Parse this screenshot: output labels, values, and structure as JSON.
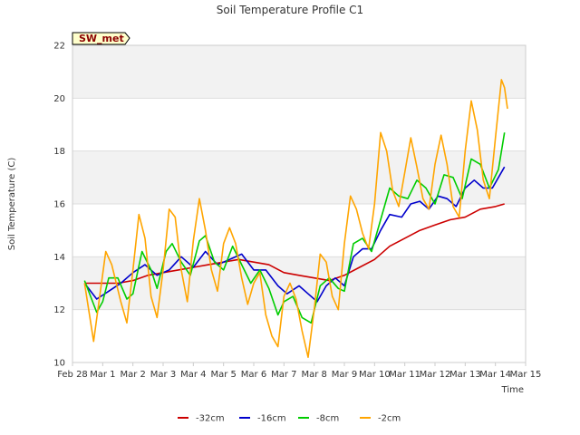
{
  "chart_data": {
    "type": "line",
    "title": "Soil Temperature Profile C1",
    "xlabel": "Time",
    "ylabel": "Soil Temperature (C)",
    "badge": "SW_met",
    "ylim": [
      10,
      22
    ],
    "yticks": [
      10,
      12,
      14,
      16,
      18,
      20,
      22
    ],
    "xlim": [
      0,
      15
    ],
    "xticks": [
      {
        "v": 0,
        "label": "Feb 28"
      },
      {
        "v": 1,
        "label": "Mar 1"
      },
      {
        "v": 2,
        "label": "Mar 2"
      },
      {
        "v": 3,
        "label": "Mar 3"
      },
      {
        "v": 4,
        "label": "Mar 4"
      },
      {
        "v": 5,
        "label": "Mar 5"
      },
      {
        "v": 6,
        "label": "Mar 6"
      },
      {
        "v": 7,
        "label": "Mar 7"
      },
      {
        "v": 8,
        "label": "Mar 8"
      },
      {
        "v": 9,
        "label": "Mar 9"
      },
      {
        "v": 10,
        "label": "Mar 10"
      },
      {
        "v": 11,
        "label": "Mar 11"
      },
      {
        "v": 12,
        "label": "Mar 12"
      },
      {
        "v": 13,
        "label": "Mar 13"
      },
      {
        "v": 14,
        "label": "Mar 14"
      },
      {
        "v": 15,
        "label": "Mar 15"
      }
    ],
    "grid": true,
    "legend_position": "bottom",
    "series": [
      {
        "name": "-32cm",
        "color": "#cc0000",
        "points": [
          [
            0.4,
            13.0
          ],
          [
            1.0,
            13.0
          ],
          [
            1.5,
            13.0
          ],
          [
            2.0,
            13.1
          ],
          [
            2.5,
            13.3
          ],
          [
            3.0,
            13.4
          ],
          [
            3.5,
            13.5
          ],
          [
            4.0,
            13.6
          ],
          [
            4.5,
            13.7
          ],
          [
            5.0,
            13.8
          ],
          [
            5.5,
            13.9
          ],
          [
            6.0,
            13.8
          ],
          [
            6.5,
            13.7
          ],
          [
            7.0,
            13.4
          ],
          [
            7.5,
            13.3
          ],
          [
            8.0,
            13.2
          ],
          [
            8.5,
            13.1
          ],
          [
            9.0,
            13.3
          ],
          [
            9.5,
            13.6
          ],
          [
            10.0,
            13.9
          ],
          [
            10.5,
            14.4
          ],
          [
            11.0,
            14.7
          ],
          [
            11.5,
            15.0
          ],
          [
            12.0,
            15.2
          ],
          [
            12.5,
            15.4
          ],
          [
            13.0,
            15.5
          ],
          [
            13.5,
            15.8
          ],
          [
            14.0,
            15.9
          ],
          [
            14.3,
            16.0
          ]
        ]
      },
      {
        "name": "-16cm",
        "color": "#0000cc",
        "points": [
          [
            0.4,
            13.0
          ],
          [
            0.8,
            12.4
          ],
          [
            1.2,
            12.7
          ],
          [
            1.6,
            13.0
          ],
          [
            2.0,
            13.4
          ],
          [
            2.4,
            13.7
          ],
          [
            2.8,
            13.3
          ],
          [
            3.2,
            13.5
          ],
          [
            3.6,
            14.0
          ],
          [
            4.0,
            13.6
          ],
          [
            4.4,
            14.2
          ],
          [
            4.8,
            13.7
          ],
          [
            5.2,
            13.9
          ],
          [
            5.6,
            14.1
          ],
          [
            6.0,
            13.5
          ],
          [
            6.4,
            13.5
          ],
          [
            6.8,
            12.9
          ],
          [
            7.1,
            12.6
          ],
          [
            7.5,
            12.9
          ],
          [
            7.8,
            12.6
          ],
          [
            8.1,
            12.3
          ],
          [
            8.4,
            12.9
          ],
          [
            8.7,
            13.2
          ],
          [
            9.0,
            12.9
          ],
          [
            9.3,
            14.0
          ],
          [
            9.6,
            14.3
          ],
          [
            9.9,
            14.3
          ],
          [
            10.2,
            15.0
          ],
          [
            10.5,
            15.6
          ],
          [
            10.9,
            15.5
          ],
          [
            11.2,
            16.0
          ],
          [
            11.5,
            16.1
          ],
          [
            11.8,
            15.8
          ],
          [
            12.1,
            16.3
          ],
          [
            12.4,
            16.2
          ],
          [
            12.7,
            15.9
          ],
          [
            13.0,
            16.6
          ],
          [
            13.3,
            16.9
          ],
          [
            13.6,
            16.6
          ],
          [
            13.9,
            16.6
          ],
          [
            14.3,
            17.4
          ]
        ]
      },
      {
        "name": "-8cm",
        "color": "#00cc00",
        "points": [
          [
            0.4,
            13.1
          ],
          [
            0.8,
            11.9
          ],
          [
            1.0,
            12.3
          ],
          [
            1.2,
            13.2
          ],
          [
            1.5,
            13.2
          ],
          [
            1.8,
            12.4
          ],
          [
            2.0,
            12.6
          ],
          [
            2.3,
            14.2
          ],
          [
            2.6,
            13.5
          ],
          [
            2.8,
            12.8
          ],
          [
            3.1,
            14.2
          ],
          [
            3.3,
            14.5
          ],
          [
            3.6,
            13.8
          ],
          [
            3.9,
            13.3
          ],
          [
            4.2,
            14.6
          ],
          [
            4.4,
            14.8
          ],
          [
            4.7,
            13.8
          ],
          [
            5.0,
            13.5
          ],
          [
            5.3,
            14.4
          ],
          [
            5.6,
            13.7
          ],
          [
            5.9,
            13.0
          ],
          [
            6.2,
            13.5
          ],
          [
            6.5,
            12.8
          ],
          [
            6.8,
            11.8
          ],
          [
            7.0,
            12.3
          ],
          [
            7.3,
            12.5
          ],
          [
            7.6,
            11.7
          ],
          [
            7.9,
            11.5
          ],
          [
            8.2,
            12.9
          ],
          [
            8.5,
            13.2
          ],
          [
            8.8,
            12.8
          ],
          [
            9.0,
            12.7
          ],
          [
            9.3,
            14.5
          ],
          [
            9.6,
            14.7
          ],
          [
            9.9,
            14.2
          ],
          [
            10.2,
            15.4
          ],
          [
            10.5,
            16.6
          ],
          [
            10.8,
            16.3
          ],
          [
            11.1,
            16.2
          ],
          [
            11.4,
            16.9
          ],
          [
            11.7,
            16.6
          ],
          [
            12.0,
            16.0
          ],
          [
            12.3,
            17.1
          ],
          [
            12.6,
            17.0
          ],
          [
            12.9,
            16.2
          ],
          [
            13.2,
            17.7
          ],
          [
            13.5,
            17.5
          ],
          [
            13.8,
            16.6
          ],
          [
            14.1,
            17.3
          ],
          [
            14.3,
            18.7
          ]
        ]
      },
      {
        "name": "-2cm",
        "color": "#ffa500",
        "points": [
          [
            0.4,
            13.0
          ],
          [
            0.7,
            10.8
          ],
          [
            0.9,
            12.5
          ],
          [
            1.1,
            14.2
          ],
          [
            1.3,
            13.7
          ],
          [
            1.6,
            12.3
          ],
          [
            1.8,
            11.5
          ],
          [
            2.0,
            13.5
          ],
          [
            2.2,
            15.6
          ],
          [
            2.4,
            14.7
          ],
          [
            2.6,
            12.5
          ],
          [
            2.8,
            11.7
          ],
          [
            3.0,
            13.5
          ],
          [
            3.2,
            15.8
          ],
          [
            3.4,
            15.5
          ],
          [
            3.6,
            13.5
          ],
          [
            3.8,
            12.3
          ],
          [
            4.0,
            14.6
          ],
          [
            4.2,
            16.2
          ],
          [
            4.4,
            15.0
          ],
          [
            4.6,
            13.5
          ],
          [
            4.8,
            12.7
          ],
          [
            5.0,
            14.5
          ],
          [
            5.2,
            15.1
          ],
          [
            5.4,
            14.5
          ],
          [
            5.6,
            13.2
          ],
          [
            5.8,
            12.2
          ],
          [
            6.0,
            13.0
          ],
          [
            6.2,
            13.4
          ],
          [
            6.4,
            11.8
          ],
          [
            6.6,
            11.0
          ],
          [
            6.8,
            10.6
          ],
          [
            7.0,
            12.5
          ],
          [
            7.2,
            13.0
          ],
          [
            7.4,
            12.4
          ],
          [
            7.6,
            11.2
          ],
          [
            7.8,
            10.2
          ],
          [
            8.0,
            12.0
          ],
          [
            8.2,
            14.1
          ],
          [
            8.4,
            13.8
          ],
          [
            8.6,
            12.5
          ],
          [
            8.8,
            12.0
          ],
          [
            9.0,
            14.5
          ],
          [
            9.2,
            16.3
          ],
          [
            9.4,
            15.8
          ],
          [
            9.6,
            14.9
          ],
          [
            9.8,
            14.3
          ],
          [
            10.0,
            16.0
          ],
          [
            10.2,
            18.7
          ],
          [
            10.4,
            18.0
          ],
          [
            10.6,
            16.5
          ],
          [
            10.8,
            15.9
          ],
          [
            11.0,
            17.2
          ],
          [
            11.2,
            18.5
          ],
          [
            11.4,
            17.4
          ],
          [
            11.6,
            16.2
          ],
          [
            11.8,
            15.8
          ],
          [
            12.0,
            17.5
          ],
          [
            12.2,
            18.6
          ],
          [
            12.4,
            17.5
          ],
          [
            12.6,
            15.9
          ],
          [
            12.8,
            15.5
          ],
          [
            13.0,
            18.0
          ],
          [
            13.2,
            19.9
          ],
          [
            13.4,
            18.8
          ],
          [
            13.6,
            16.9
          ],
          [
            13.8,
            16.2
          ],
          [
            14.0,
            18.5
          ],
          [
            14.2,
            20.7
          ],
          [
            14.3,
            20.4
          ],
          [
            14.4,
            19.6
          ]
        ]
      }
    ]
  }
}
